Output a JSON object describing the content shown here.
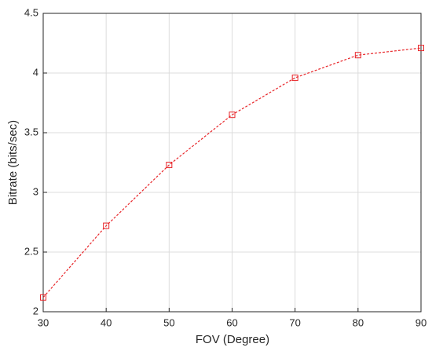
{
  "chart_data": {
    "type": "line",
    "xlabel": "FOV (Degree)",
    "ylabel": "Bitrate (bits/sec)",
    "x": [
      30,
      40,
      50,
      60,
      70,
      80,
      90
    ],
    "series": [
      {
        "color": "#e8262a",
        "values": [
          2.12,
          2.72,
          3.23,
          3.65,
          3.96,
          4.15,
          4.21
        ]
      }
    ],
    "xlim": [
      30,
      90
    ],
    "xticks": [
      30,
      40,
      50,
      60,
      70,
      80,
      90
    ],
    "ylim": [
      2,
      4.5
    ],
    "yticks": [
      2,
      2.5,
      3,
      3.5,
      4,
      4.5
    ],
    "grid": true
  }
}
